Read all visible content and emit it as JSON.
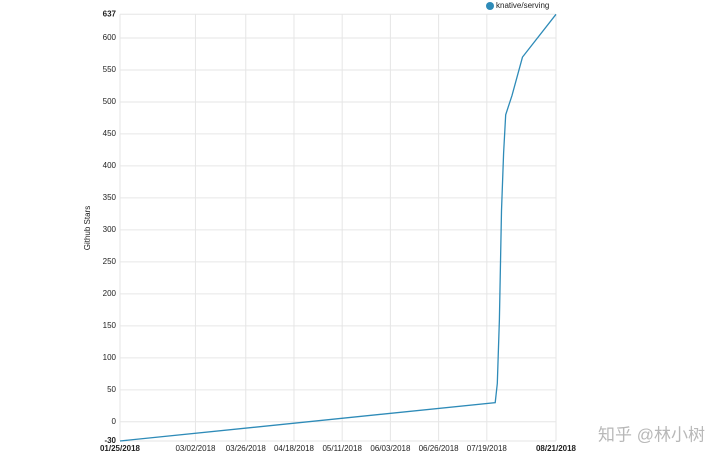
{
  "chart_data": {
    "type": "line",
    "y_label": "Github Stars",
    "x": [
      "2018-01-25",
      "2018-07-23",
      "2018-07-24",
      "2018-07-25",
      "2018-07-26",
      "2018-07-27",
      "2018-07-28",
      "2018-07-31",
      "2018-08-05",
      "2018-08-21"
    ],
    "series": [
      {
        "name": "knative/serving",
        "color": "#2e8bb8",
        "values": [
          -30,
          30,
          60,
          160,
          330,
          420,
          480,
          510,
          570,
          637
        ]
      }
    ],
    "xlim": [
      "2018-01-25",
      "2018-08-21"
    ],
    "xticks": [
      {
        "value": "2018-01-25",
        "label": "01/25/2018"
      },
      {
        "value": "2018-03-02",
        "label": "03/02/2018"
      },
      {
        "value": "2018-03-26",
        "label": "03/26/2018"
      },
      {
        "value": "2018-04-18",
        "label": "04/18/2018"
      },
      {
        "value": "2018-05-11",
        "label": "05/11/2018"
      },
      {
        "value": "2018-06-03",
        "label": "06/03/2018"
      },
      {
        "value": "2018-06-26",
        "label": "06/26/2018"
      },
      {
        "value": "2018-07-19",
        "label": "07/19/2018"
      },
      {
        "value": "2018-08-21",
        "label": "08/21/2018"
      }
    ],
    "ylim": [
      -30,
      637
    ],
    "yticks": [
      -30,
      0,
      50,
      100,
      150,
      200,
      250,
      300,
      350,
      400,
      450,
      500,
      550,
      600,
      637
    ],
    "grid": true,
    "legend": "top-right",
    "watermark": "知乎 @林小树"
  }
}
